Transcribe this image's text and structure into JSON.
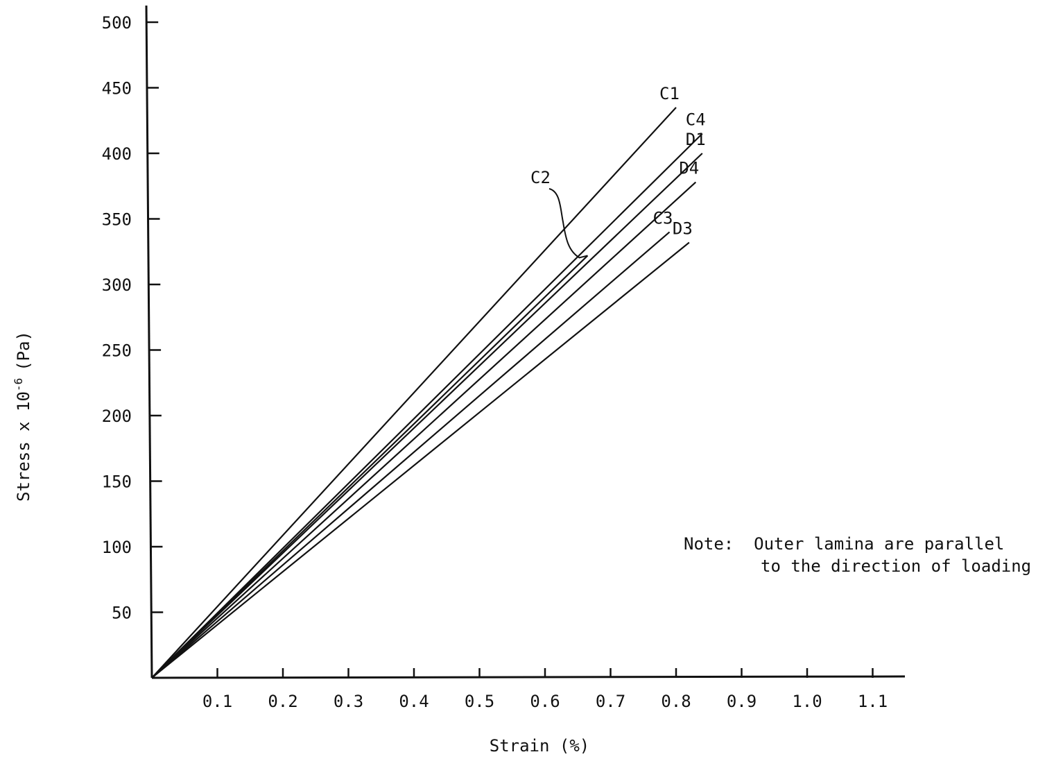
{
  "chart_data": {
    "type": "line",
    "title": "",
    "xlabel": "Strain (%)",
    "ylabel": "Stress x 10",
    "ylabel_sup": "-6",
    "ylabel_unit": "(Pa)",
    "xlim": [
      0,
      1.15
    ],
    "ylim": [
      0,
      500
    ],
    "x_ticks": [
      "0.1",
      "0.2",
      "0.3",
      "0.4",
      "0.5",
      "0.6",
      "0.7",
      "0.8",
      "0.9",
      "1.0",
      "1.1"
    ],
    "x_tick_values": [
      0.1,
      0.2,
      0.3,
      0.4,
      0.5,
      0.6,
      0.7,
      0.8,
      0.9,
      1.0,
      1.1
    ],
    "y_ticks": [
      "50",
      "100",
      "150",
      "200",
      "250",
      "300",
      "350",
      "400",
      "450",
      "500"
    ],
    "y_tick_values": [
      50,
      100,
      150,
      200,
      250,
      300,
      350,
      400,
      450,
      500
    ],
    "grid": false,
    "line_color": "#111111",
    "series": [
      {
        "name": "C1",
        "x": [
          0,
          0.8
        ],
        "y": [
          0,
          435
        ]
      },
      {
        "name": "C4",
        "x": [
          0,
          0.84
        ],
        "y": [
          0,
          415
        ]
      },
      {
        "name": "D1",
        "x": [
          0,
          0.84
        ],
        "y": [
          0,
          400
        ]
      },
      {
        "name": "D4",
        "x": [
          0,
          0.83
        ],
        "y": [
          0,
          378
        ]
      },
      {
        "name": "C3",
        "x": [
          0,
          0.79
        ],
        "y": [
          0,
          340
        ]
      },
      {
        "name": "D3",
        "x": [
          0,
          0.82
        ],
        "y": [
          0,
          332
        ]
      },
      {
        "name": "C2",
        "x": [
          0,
          0.665
        ],
        "y": [
          0,
          322
        ]
      }
    ],
    "annotations": {
      "note_line1": "Note:  Outer lamina are parallel",
      "note_line2": "to the direction of loading"
    }
  }
}
